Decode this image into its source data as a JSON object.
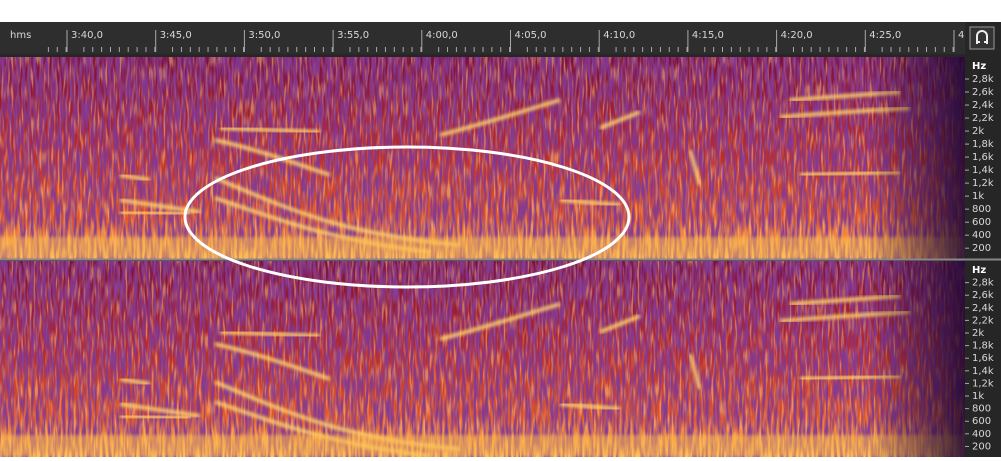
{
  "ruler": {
    "unit": "hms",
    "labels": [
      "3:40,0",
      "3:45,0",
      "3:50,0",
      "3:55,0",
      "4:00,0",
      "4:05,0",
      "4:10,0",
      "4:15,0",
      "4:20,0",
      "4:25,0",
      "4"
    ]
  },
  "channels": [
    {
      "unit": "Hz",
      "labels": [
        "2,8k",
        "2,6k",
        "2,4k",
        "2,2k",
        "2k",
        "1,8k",
        "1,6k",
        "1,4k",
        "1,2k",
        "1k",
        "800",
        "600",
        "400",
        "200"
      ]
    },
    {
      "unit": "Hz",
      "labels": [
        "2,8k",
        "2,6k",
        "2,4k",
        "2,2k",
        "2k",
        "1,8k",
        "1,6k",
        "1,4k",
        "1,2k",
        "1k",
        "800",
        "600",
        "400",
        "200"
      ]
    }
  ]
}
